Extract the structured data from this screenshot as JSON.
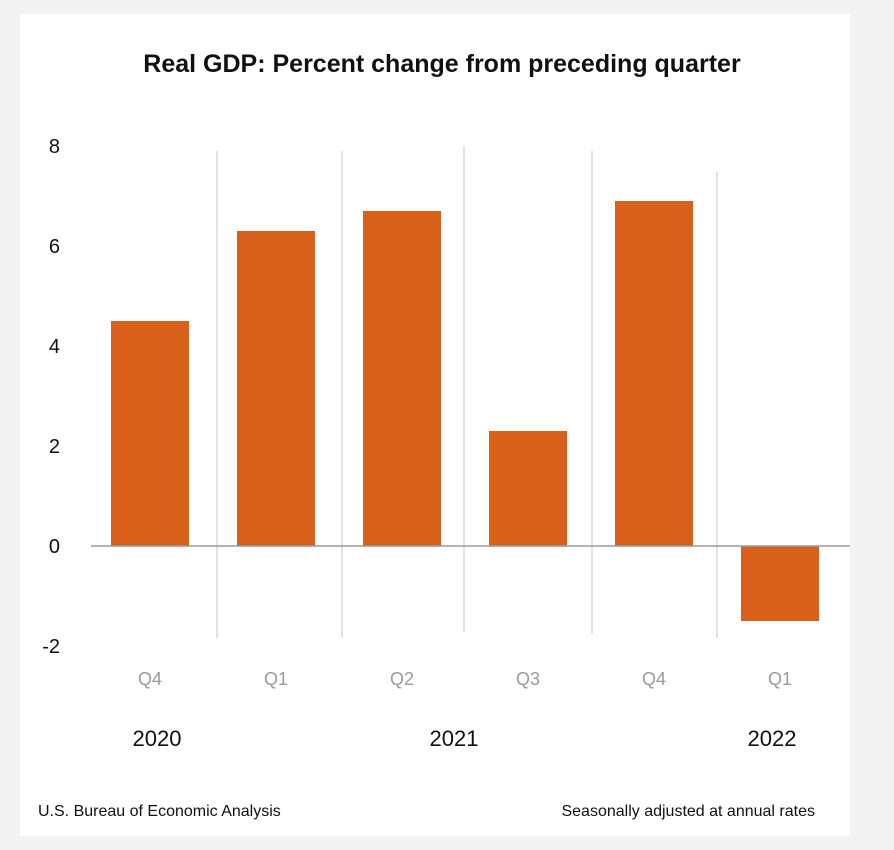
{
  "chart_data": {
    "type": "bar",
    "title": "Real GDP:  Percent change from preceding quarter",
    "categories": [
      "Q4",
      "Q1",
      "Q2",
      "Q3",
      "Q4",
      "Q1"
    ],
    "values": [
      4.5,
      6.3,
      6.7,
      2.3,
      6.9,
      -1.5
    ],
    "year_labels": [
      "2020",
      "2021",
      "2022"
    ],
    "y_ticks": [
      "8",
      "6",
      "4",
      "2",
      "0",
      "-2"
    ],
    "ylim": [
      -2,
      8
    ],
    "grid": false,
    "bar_color": "#d9601a",
    "source": "U.S. Bureau of Economic Analysis",
    "note": "Seasonally adjusted at annual rates"
  }
}
